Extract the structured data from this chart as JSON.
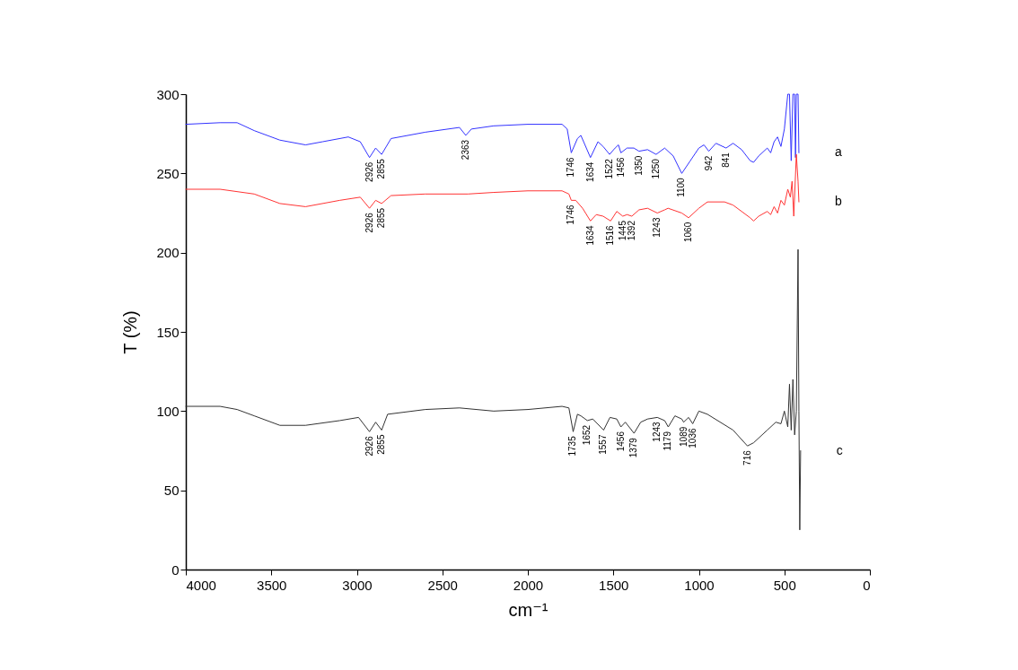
{
  "chart_data": {
    "type": "line",
    "xlabel": "cm⁻¹",
    "ylabel": "T (%)",
    "xlim": [
      4000,
      0
    ],
    "xticks": [
      4000,
      3500,
      3000,
      2500,
      2000,
      1500,
      1000,
      500,
      0
    ],
    "ylim": [
      0,
      300
    ],
    "yticks": [
      0,
      50,
      100,
      150,
      200,
      250,
      300
    ],
    "grid": false,
    "legend": false,
    "marker": "none",
    "line_style": "solid",
    "series": [
      {
        "name": "a",
        "color": "#3333ff",
        "x": [
          4000,
          3800,
          3700,
          3600,
          3450,
          3300,
          3200,
          3050,
          2980,
          2926,
          2890,
          2855,
          2800,
          2600,
          2400,
          2363,
          2330,
          2200,
          2000,
          1800,
          1770,
          1746,
          1710,
          1690,
          1634,
          1590,
          1560,
          1522,
          1490,
          1470,
          1456,
          1420,
          1380,
          1350,
          1300,
          1250,
          1200,
          1150,
          1100,
          1050,
          1000,
          970,
          942,
          900,
          841,
          800,
          750,
          700,
          680,
          650,
          600,
          580,
          560,
          540,
          520,
          500,
          480,
          470,
          460,
          450,
          440,
          435,
          430,
          420,
          415
        ],
        "values": [
          281,
          282,
          282,
          277,
          271,
          268,
          270,
          273,
          270,
          260,
          266,
          262,
          272,
          276,
          279,
          274,
          278,
          280,
          281,
          281,
          278,
          263,
          272,
          274,
          260,
          270,
          267,
          262,
          266,
          268,
          263,
          266,
          266,
          264,
          265,
          262,
          266,
          261,
          250,
          258,
          266,
          268,
          264,
          269,
          266,
          269,
          265,
          258,
          257,
          261,
          266,
          263,
          270,
          273,
          267,
          278,
          300,
          300,
          258,
          300,
          300,
          260,
          300,
          300,
          263
        ]
      },
      {
        "name": "b",
        "color": "#ff3333",
        "x": [
          4000,
          3800,
          3600,
          3450,
          3300,
          3100,
          2980,
          2926,
          2890,
          2855,
          2800,
          2600,
          2350,
          2200,
          2000,
          1800,
          1760,
          1746,
          1720,
          1680,
          1634,
          1600,
          1560,
          1516,
          1480,
          1445,
          1420,
          1392,
          1350,
          1300,
          1243,
          1200,
          1180,
          1100,
          1060,
          1000,
          950,
          850,
          800,
          700,
          680,
          650,
          600,
          580,
          560,
          540,
          520,
          500,
          480,
          465,
          455,
          445,
          430,
          420,
          415
        ],
        "values": [
          240,
          240,
          237,
          231,
          229,
          233,
          235,
          228,
          233,
          231,
          236,
          237,
          237,
          238,
          239,
          239,
          237,
          233,
          233,
          228,
          220,
          224,
          223,
          220,
          226,
          223,
          224,
          223,
          227,
          228,
          225,
          227,
          228,
          225,
          222,
          228,
          232,
          232,
          230,
          222,
          220,
          223,
          226,
          224,
          229,
          225,
          233,
          230,
          240,
          235,
          245,
          223,
          262,
          245,
          232
        ]
      },
      {
        "name": "c",
        "color": "#333333",
        "x": [
          4000,
          3800,
          3700,
          3600,
          3450,
          3300,
          3100,
          2990,
          2926,
          2890,
          2855,
          2820,
          2600,
          2400,
          2200,
          2000,
          1800,
          1760,
          1735,
          1710,
          1690,
          1652,
          1620,
          1557,
          1520,
          1480,
          1456,
          1430,
          1379,
          1340,
          1300,
          1243,
          1200,
          1179,
          1140,
          1100,
          1089,
          1060,
          1036,
          1000,
          950,
          800,
          716,
          680,
          600,
          550,
          520,
          500,
          480,
          470,
          460,
          450,
          440,
          430,
          420,
          415,
          410,
          405
        ],
        "values": [
          103,
          103,
          101,
          97,
          91,
          91,
          94,
          96,
          87,
          93,
          88,
          98,
          101,
          102,
          100,
          101,
          103,
          102,
          87,
          98,
          97,
          94,
          95,
          88,
          96,
          95,
          90,
          93,
          86,
          93,
          95,
          96,
          94,
          90,
          97,
          95,
          93,
          96,
          92,
          100,
          98,
          88,
          78,
          80,
          88,
          93,
          92,
          100,
          90,
          117,
          88,
          120,
          85,
          100,
          202,
          100,
          25,
          75
        ]
      }
    ],
    "annotations": [
      {
        "text": "2926",
        "x": 2926,
        "y": 260
      },
      {
        "text": "2855",
        "x": 2855,
        "y": 262
      },
      {
        "text": "2363",
        "x": 2363,
        "y": 274
      },
      {
        "text": "1746",
        "x": 1746,
        "y": 263
      },
      {
        "text": "1634",
        "x": 1634,
        "y": 260
      },
      {
        "text": "1522",
        "x": 1522,
        "y": 262
      },
      {
        "text": "1456",
        "x": 1456,
        "y": 263
      },
      {
        "text": "1350",
        "x": 1350,
        "y": 264
      },
      {
        "text": "1250",
        "x": 1250,
        "y": 262
      },
      {
        "text": "1100",
        "x": 1100,
        "y": 250
      },
      {
        "text": "942",
        "x": 942,
        "y": 264
      },
      {
        "text": "841",
        "x": 841,
        "y": 266
      },
      {
        "text": "2926",
        "x": 2926,
        "y": 228
      },
      {
        "text": "2855",
        "x": 2855,
        "y": 231
      },
      {
        "text": "1746",
        "x": 1746,
        "y": 233
      },
      {
        "text": "1634",
        "x": 1634,
        "y": 220
      },
      {
        "text": "1516",
        "x": 1516,
        "y": 220
      },
      {
        "text": "1445",
        "x": 1445,
        "y": 223
      },
      {
        "text": "1392",
        "x": 1392,
        "y": 223
      },
      {
        "text": "1243",
        "x": 1243,
        "y": 225
      },
      {
        "text": "1060",
        "x": 1060,
        "y": 222
      },
      {
        "text": "2926",
        "x": 2926,
        "y": 87
      },
      {
        "text": "2855",
        "x": 2855,
        "y": 88
      },
      {
        "text": "1735",
        "x": 1735,
        "y": 87
      },
      {
        "text": "1652",
        "x": 1652,
        "y": 94
      },
      {
        "text": "1557",
        "x": 1557,
        "y": 88
      },
      {
        "text": "1456",
        "x": 1456,
        "y": 90
      },
      {
        "text": "1379",
        "x": 1379,
        "y": 86
      },
      {
        "text": "1243",
        "x": 1243,
        "y": 96
      },
      {
        "text": "1179",
        "x": 1179,
        "y": 90
      },
      {
        "text": "1089",
        "x": 1089,
        "y": 93
      },
      {
        "text": "1036",
        "x": 1036,
        "y": 92
      },
      {
        "text": "716",
        "x": 716,
        "y": 78
      }
    ]
  }
}
